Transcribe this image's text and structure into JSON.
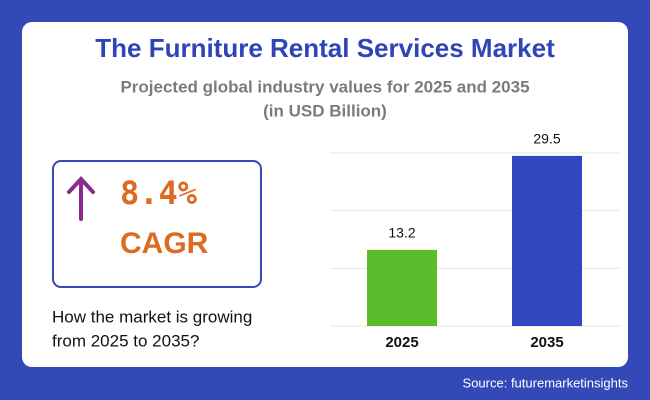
{
  "header": {
    "title": "The Furniture Rental Services Market",
    "subtitle": [
      "Projected global industry values for 2025 and 2035",
      "(in USD Billion)"
    ]
  },
  "cagr": {
    "value": "8.4%",
    "label": "CAGR"
  },
  "question": [
    "How the market is growing",
    "from 2025 to 2035?"
  ],
  "source": "Source: futuremarketinsights",
  "chart_data": {
    "type": "bar",
    "categories": [
      "2025",
      "2035"
    ],
    "values": [
      13.2,
      29.5
    ],
    "colors": [
      "#5bbd2b",
      "#3047c0"
    ],
    "ylim": [
      0,
      30
    ],
    "yticks": [
      0,
      10,
      20,
      30
    ],
    "grid": true
  }
}
